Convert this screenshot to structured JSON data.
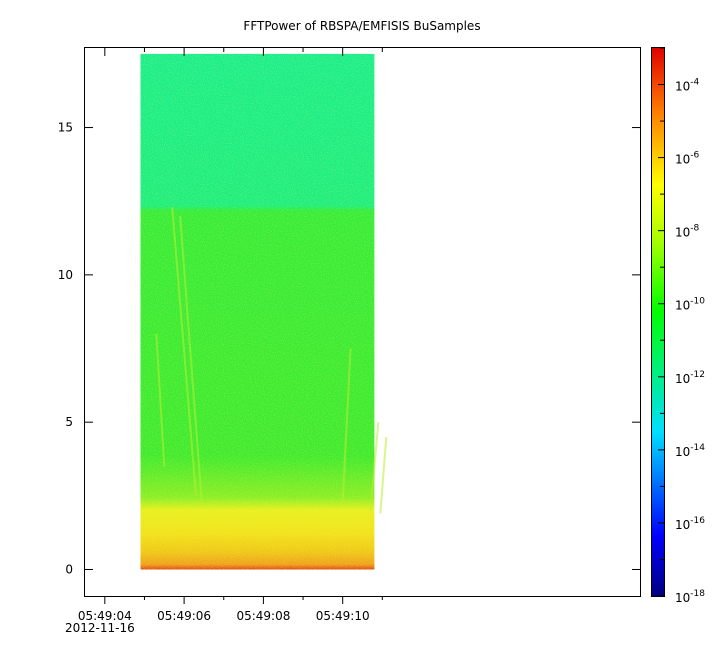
{
  "chart_data": {
    "type": "heatmap",
    "title": "FFTPower of RBSPA/EMFISIS  BuSamples",
    "date_label": "2012-11-16",
    "xlabel": "",
    "ylabel": "",
    "x_ticks": [
      "05:49:04",
      "05:49:06",
      "05:49:08",
      "05:49:10"
    ],
    "y_ticks": [
      "0",
      "5",
      "10",
      "15"
    ],
    "ylim": [
      -0.9,
      17.7
    ],
    "xlim_seconds": [
      -0.5,
      13.5
    ],
    "data_extent": {
      "x_start": "05:49:04.9",
      "x_end": "05:49:10.8",
      "y_min": 0,
      "y_max": 17.5
    },
    "colorbar": {
      "scale": "log",
      "range": [
        1e-18,
        0.001
      ],
      "tick_labels": [
        {
          "base": "10",
          "exp": "-4"
        },
        {
          "base": "10",
          "exp": "-6"
        },
        {
          "base": "10",
          "exp": "-8"
        },
        {
          "base": "10",
          "exp": "-10"
        },
        {
          "base": "10",
          "exp": "-12"
        },
        {
          "base": "10",
          "exp": "-14"
        },
        {
          "base": "10",
          "exp": "-16"
        },
        {
          "base": "10",
          "exp": "-18"
        }
      ],
      "colormap": [
        "#00007f",
        "#0000ff",
        "#00ffff",
        "#00ff00",
        "#ffff00",
        "#ff0000"
      ]
    },
    "power_bands": [
      {
        "y_from": 12.2,
        "y_to": 17.5,
        "log_power": -11.5,
        "description": "upper band"
      },
      {
        "y_from": 2.2,
        "y_to": 12.2,
        "log_power": -10.3,
        "description": "middle band"
      },
      {
        "y_from": 1.3,
        "y_to": 2.2,
        "log_power": -8.8,
        "description": "transition band"
      },
      {
        "y_from": 0.2,
        "y_to": 1.3,
        "log_power": -7.8,
        "description": "low band"
      },
      {
        "y_from": 0.0,
        "y_to": 0.2,
        "log_power": -6.0,
        "description": "bottom edge"
      }
    ],
    "colors": {
      "upper": "#15f08a",
      "middle": "#33ee33",
      "lower": "#e8f020",
      "bottom": "#f0a020",
      "edge": "#e05010"
    }
  }
}
